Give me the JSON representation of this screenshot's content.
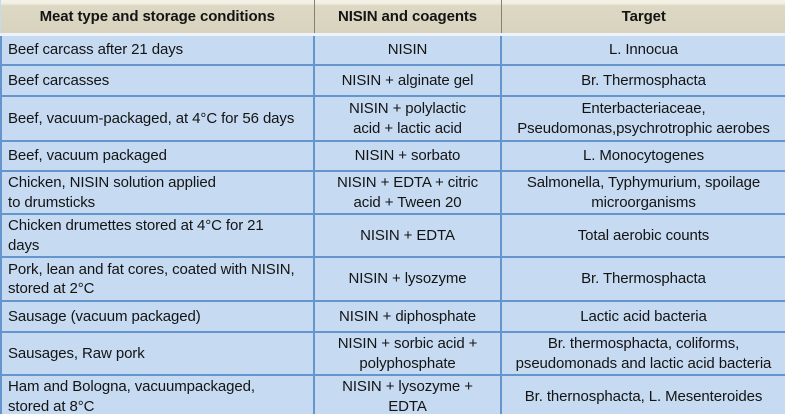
{
  "table": {
    "columns": [
      "Meat type and storage conditions",
      "NISIN and coagents",
      "Target"
    ],
    "rows": [
      {
        "meat": "Beef carcass after 21 days",
        "coagents": "NISIN",
        "target": "L. Innocua"
      },
      {
        "meat": "Beef carcasses",
        "coagents": "NISIN + alginate gel",
        "target": "Br. Thermosphacta"
      },
      {
        "meat": "Beef, vacuum-packaged, at 4°C for 56 days",
        "coagents": "NISIN + polylactic\nacid + lactic acid",
        "target": "Enterbacteriaceae,\nPseudomonas,psychrotrophic aerobes"
      },
      {
        "meat": "Beef, vacuum packaged",
        "coagents": "NISIN + sorbato",
        "target": "L. Monocytogenes"
      },
      {
        "meat": "Chicken, NISIN solution applied\nto drumsticks",
        "coagents": "NISIN + EDTA + citric\nacid + Tween 20",
        "target": "Salmonella, Typhymurium, spoilage\nmicroorganisms"
      },
      {
        "meat": "Chicken drumettes stored at 4°C for 21\ndays",
        "coagents": "NISIN + EDTA",
        "target": "Total aerobic counts"
      },
      {
        "meat": "Pork, lean and fat cores, coated with NISIN,\nstored at 2°C",
        "coagents": "NISIN + lysozyme",
        "target": "Br. Thermosphacta"
      },
      {
        "meat": "Sausage (vacuum packaged)",
        "coagents": "NISIN + diphosphate",
        "target": "Lactic acid bacteria"
      },
      {
        "meat": "Sausages, Raw pork",
        "coagents": "NISIN + sorbic acid +\npolyphosphate",
        "target": "Br. thermosphacta, coliforms,\npseudomonads and lactic acid bacteria"
      },
      {
        "meat": "Ham and Bologna, vacuumpackaged,\nstored at 8°C",
        "coagents": "NISIN + lysozyme +\nEDTA",
        "target": "Br. thernosphacta, L. Mesenteroides"
      }
    ]
  },
  "colors": {
    "header_bg": "#ddd8c3",
    "row_bg": "#c6daf2",
    "border_blue": "#6496cd",
    "text": "#141414"
  }
}
